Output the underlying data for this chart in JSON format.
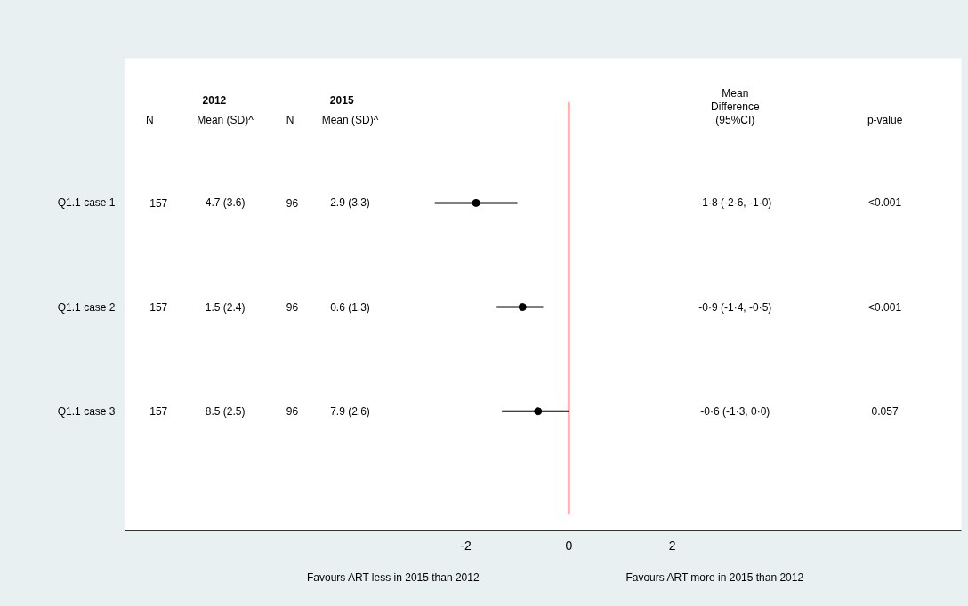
{
  "chart_data": {
    "type": "scatter",
    "orientation": "horizontal",
    "categories": [
      "Q1.1 case 1",
      "Q1.1 case 2",
      "Q1.1 case 3"
    ],
    "series": [
      {
        "color": "#000000",
        "values": [
          -1.8,
          -0.9,
          -0.6
        ],
        "errors": [
          [
            -2.6,
            -1.0
          ],
          [
            -1.4,
            -0.5
          ],
          [
            -1.3,
            0.0
          ]
        ]
      }
    ],
    "xlim": [
      -8.6,
      7.6
    ],
    "xticks": [
      -2,
      0,
      2
    ],
    "marker": "circle",
    "grid": false,
    "ref_lines": [
      {
        "axis": "x",
        "value": 0,
        "color": "#ff0000"
      }
    ],
    "annotations": [
      "2012",
      "2015",
      "N",
      "Mean (SD)^",
      "N",
      "Mean (SD)^",
      "Mean\nDifference\n(95%CI)",
      "p-value",
      "157",
      "4.7 (3.6)",
      "96",
      "2.9 (3.3)",
      "-1·8 (-2·6, -1·0)",
      "<0.001",
      "157",
      "1.5 (2.4)",
      "96",
      "0.6 (1.3)",
      "-0·9 (-1·4, -0·5)",
      "<0.001",
      "157",
      "8.5 (2.5)",
      "96",
      "7.9 (2.6)",
      "-0·6 (-1·3, 0·0)",
      "0.057",
      "Favours ART less in 2015 than 2012",
      "Favours ART more in 2015 than 2012"
    ]
  }
}
